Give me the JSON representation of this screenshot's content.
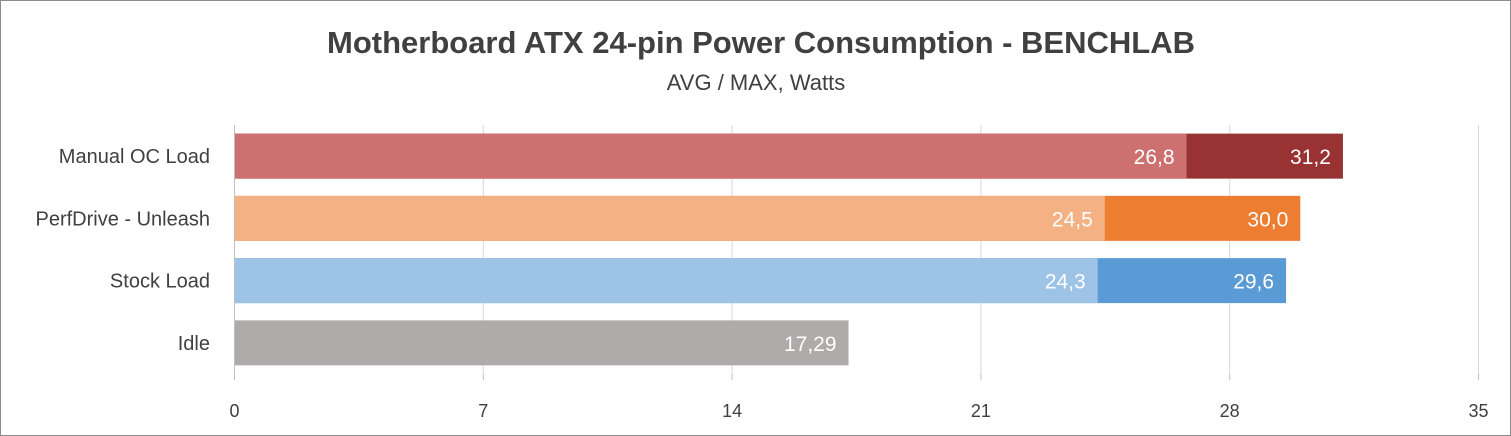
{
  "chart_data": {
    "type": "bar",
    "orientation": "horizontal",
    "title": "Motherboard ATX 24-pin Power Consumption - BENCHLAB",
    "subtitle": "AVG / MAX, Watts",
    "xlim": [
      0,
      35
    ],
    "xticks": [
      0,
      7,
      14,
      21,
      28,
      35
    ],
    "grid": true,
    "legend": "none",
    "categories": [
      "Manual OC Load",
      "PerfDrive - Unleash",
      "Stock Load",
      "Idle"
    ],
    "series": [
      {
        "values": [
          26.8,
          24.5,
          24.3,
          17.29
        ],
        "labels": [
          "26,8",
          "24,5",
          "24,3",
          "17,29"
        ],
        "colors": [
          "#cc7070",
          "#f4b183",
          "#9dc3e6",
          "#afabab"
        ]
      },
      {
        "values": [
          31.2,
          30.0,
          29.6,
          null
        ],
        "labels": [
          "31,2",
          "30,0",
          "29,6",
          null
        ],
        "colors": [
          "#993333",
          "#ed7d31",
          "#5b9bd5",
          null
        ]
      }
    ]
  }
}
